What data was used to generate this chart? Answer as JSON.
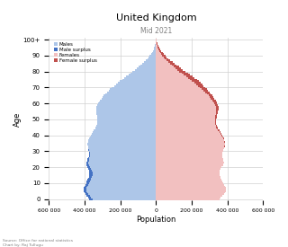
{
  "title": "United Kingdom",
  "subtitle": "Mid 2021",
  "xlabel": "Population",
  "ylabel": "Age",
  "source": "Source: Office for national statistics\nChart by: Raj Tullugu",
  "ages": [
    0,
    1,
    2,
    3,
    4,
    5,
    6,
    7,
    8,
    9,
    10,
    11,
    12,
    13,
    14,
    15,
    16,
    17,
    18,
    19,
    20,
    21,
    22,
    23,
    24,
    25,
    26,
    27,
    28,
    29,
    30,
    31,
    32,
    33,
    34,
    35,
    36,
    37,
    38,
    39,
    40,
    41,
    42,
    43,
    44,
    45,
    46,
    47,
    48,
    49,
    50,
    51,
    52,
    53,
    54,
    55,
    56,
    57,
    58,
    59,
    60,
    61,
    62,
    63,
    64,
    65,
    66,
    67,
    68,
    69,
    70,
    71,
    72,
    73,
    74,
    75,
    76,
    77,
    78,
    79,
    80,
    81,
    82,
    83,
    84,
    85,
    86,
    87,
    88,
    89,
    90,
    91,
    92,
    93,
    94,
    95,
    96,
    97,
    98,
    99,
    100
  ],
  "males": [
    374000,
    382000,
    390000,
    397000,
    402000,
    406000,
    407000,
    406000,
    402000,
    397000,
    393000,
    389000,
    385000,
    381000,
    377000,
    375000,
    374000,
    374000,
    376000,
    380000,
    385000,
    390000,
    393000,
    392000,
    388000,
    384000,
    380000,
    376000,
    374000,
    374000,
    376000,
    378000,
    381000,
    383000,
    384000,
    384000,
    382000,
    379000,
    375000,
    371000,
    366000,
    360000,
    354000,
    348000,
    342000,
    338000,
    335000,
    332000,
    330000,
    329000,
    330000,
    331000,
    332000,
    334000,
    336000,
    337000,
    337000,
    336000,
    334000,
    330000,
    325000,
    320000,
    314000,
    307000,
    300000,
    293000,
    285000,
    276000,
    267000,
    257000,
    247000,
    236000,
    225000,
    214000,
    202000,
    191000,
    179000,
    167000,
    155000,
    143000,
    131000,
    120000,
    109000,
    98000,
    88000,
    78000,
    68000,
    59000,
    50000,
    42000,
    35000,
    29000,
    23000,
    18000,
    14000,
    10000,
    7000,
    5000,
    3000,
    2000,
    1000
  ],
  "females": [
    355000,
    363000,
    371000,
    379000,
    385000,
    390000,
    391000,
    390000,
    386000,
    381000,
    376000,
    372000,
    367000,
    363000,
    359000,
    357000,
    356000,
    356000,
    358000,
    363000,
    368000,
    374000,
    378000,
    379000,
    377000,
    375000,
    373000,
    371000,
    370000,
    371000,
    374000,
    377000,
    381000,
    384000,
    386000,
    387000,
    386000,
    383000,
    379000,
    376000,
    372000,
    366000,
    360000,
    354000,
    348000,
    344000,
    341000,
    338000,
    336000,
    335000,
    337000,
    339000,
    341000,
    343000,
    346000,
    348000,
    350000,
    350000,
    349000,
    347000,
    343000,
    339000,
    334000,
    328000,
    321000,
    314000,
    308000,
    300000,
    292000,
    284000,
    276000,
    267000,
    258000,
    248000,
    238000,
    228000,
    216000,
    204000,
    192000,
    178000,
    164000,
    151000,
    139000,
    127000,
    115000,
    103000,
    92000,
    81000,
    70000,
    60000,
    51000,
    43000,
    36000,
    29000,
    23000,
    17000,
    12000,
    9000,
    6000,
    4000,
    2000
  ],
  "color_male": "#adc6e8",
  "color_male_surplus": "#4472c4",
  "color_female": "#f2c0c0",
  "color_female_surplus": "#c0504d",
  "xlim": 600000,
  "background_color": "#ffffff",
  "grid_color": "#d0d0d0"
}
